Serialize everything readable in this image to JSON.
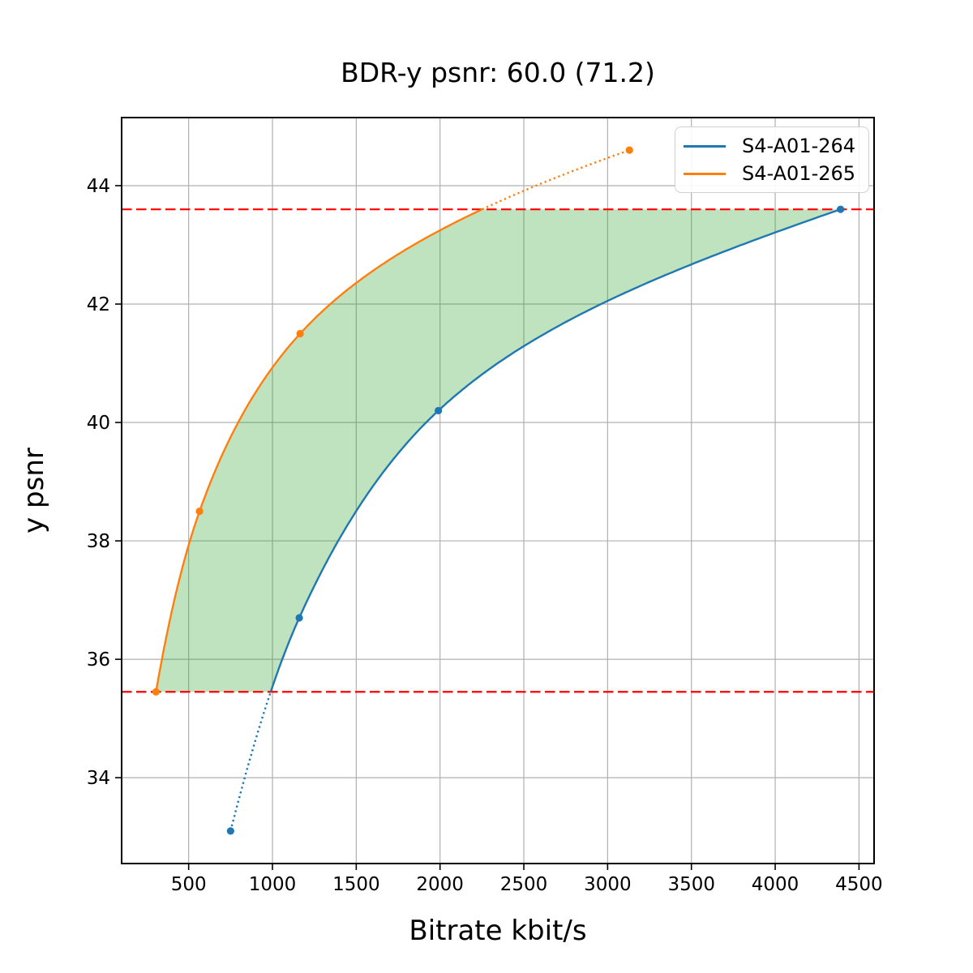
{
  "chart_data": {
    "type": "line",
    "title": "BDR-y psnr: 60.0 (71.2)",
    "xlabel": "Bitrate kbit/s",
    "ylabel": "y psnr",
    "xlim": [
      100,
      4590
    ],
    "ylim": [
      32.55,
      45.15
    ],
    "xticks": [
      500,
      1000,
      1500,
      2000,
      2500,
      3000,
      3500,
      4000,
      4500
    ],
    "yticks": [
      34,
      36,
      38,
      40,
      42,
      44
    ],
    "grid": true,
    "grid_color": "#b0b0b0",
    "legend_position": "top-right",
    "interpolation": "pchip-log-x",
    "curve_style_outside_overlap": "dotted",
    "series": [
      {
        "name": "S4-A01-264",
        "color": "#1f77b4",
        "points": [
          [
            750,
            33.1
          ],
          [
            1160,
            36.7
          ],
          [
            1990,
            40.2
          ],
          [
            4390,
            43.6
          ]
        ]
      },
      {
        "name": "S4-A01-265",
        "color": "#ff7f0e",
        "points": [
          [
            305,
            35.45
          ],
          [
            565,
            38.5
          ],
          [
            1165,
            41.5
          ],
          [
            3130,
            44.6
          ]
        ]
      }
    ],
    "overlap_band": {
      "low": 35.45,
      "high": 43.6,
      "line_color": "#ff0000",
      "line_style": "dashed",
      "fill_color": "rgba(44,160,44,0.3)"
    }
  }
}
